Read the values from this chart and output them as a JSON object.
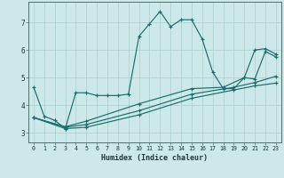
{
  "title": "",
  "xlabel": "Humidex (Indice chaleur)",
  "ylabel": "",
  "background_color": "#cce8e8",
  "grid_color": "#aacece",
  "line_color": "#1a6e6e",
  "xlim": [
    -0.5,
    23.5
  ],
  "ylim": [
    2.65,
    7.75
  ],
  "yticks": [
    3,
    4,
    5,
    6,
    7
  ],
  "xticks": [
    0,
    1,
    2,
    3,
    4,
    5,
    6,
    7,
    8,
    9,
    10,
    11,
    12,
    13,
    14,
    15,
    16,
    17,
    18,
    19,
    20,
    21,
    22,
    23
  ],
  "lines": [
    {
      "x": [
        0,
        1,
        2,
        3,
        4,
        5,
        6,
        7,
        8,
        9,
        10,
        11,
        12,
        13,
        14,
        15,
        16,
        17,
        18,
        19,
        20,
        21,
        22,
        23
      ],
      "y": [
        4.65,
        3.6,
        3.45,
        3.15,
        4.45,
        4.45,
        4.35,
        4.35,
        4.35,
        4.4,
        6.5,
        6.95,
        7.4,
        6.85,
        7.1,
        7.1,
        6.4,
        5.2,
        4.6,
        4.6,
        5.0,
        6.0,
        6.05,
        5.85
      ]
    },
    {
      "x": [
        0,
        3,
        5,
        10,
        15,
        19,
        21,
        23
      ],
      "y": [
        3.55,
        3.15,
        3.2,
        3.65,
        4.25,
        4.55,
        4.7,
        4.8
      ]
    },
    {
      "x": [
        0,
        3,
        5,
        10,
        15,
        19,
        21,
        23
      ],
      "y": [
        3.55,
        3.2,
        3.3,
        3.8,
        4.4,
        4.65,
        4.82,
        5.05
      ]
    },
    {
      "x": [
        0,
        3,
        5,
        10,
        15,
        18,
        20,
        21,
        22,
        23
      ],
      "y": [
        3.55,
        3.22,
        3.42,
        4.05,
        4.6,
        4.65,
        5.0,
        4.95,
        5.95,
        5.75
      ]
    }
  ]
}
